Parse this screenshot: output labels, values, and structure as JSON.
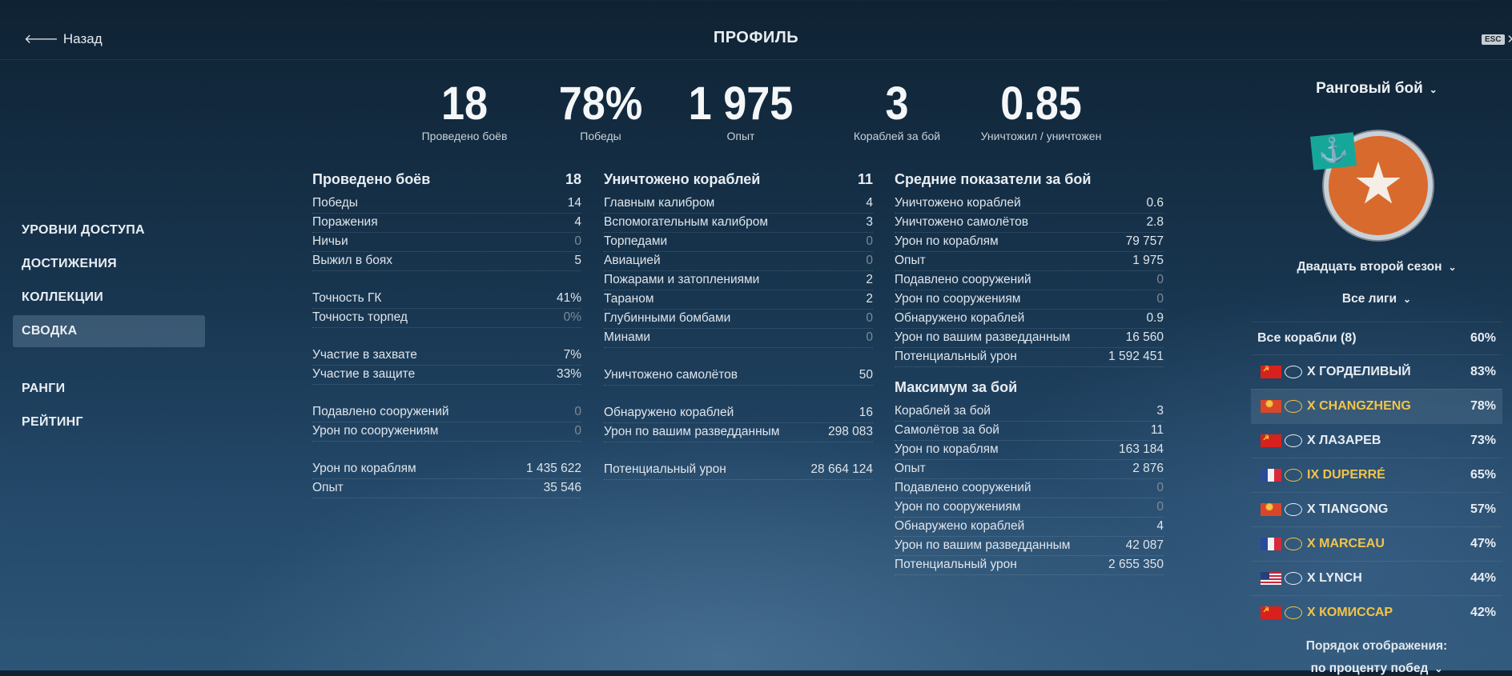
{
  "header": {
    "back_label": "Назад",
    "title": "ПРОФИЛЬ",
    "esc_label": "ESC",
    "close_glyph": "✕"
  },
  "nav": [
    {
      "label": "УРОВНИ ДОСТУПА",
      "active": false
    },
    {
      "label": "ДОСТИЖЕНИЯ",
      "active": false
    },
    {
      "label": "КОЛЛЕКЦИИ",
      "active": false
    },
    {
      "label": "СВОДКА",
      "active": true
    },
    {
      "label": "РАНГИ",
      "active": false
    },
    {
      "label": "РЕЙТИНГ",
      "active": false
    }
  ],
  "headline": [
    {
      "value": "18",
      "label": "Проведено боёв"
    },
    {
      "value": "78%",
      "label": "Победы"
    },
    {
      "value": "1 975",
      "label": "Опыт"
    },
    {
      "value": "3",
      "label": "Кораблей за бой"
    },
    {
      "value": "0.85",
      "label": "Уничтожил / уничтожен"
    }
  ],
  "col1": {
    "title": "Проведено боёв",
    "value": "18",
    "rows": [
      {
        "label": "Победы",
        "value": "14"
      },
      {
        "label": "Поражения",
        "value": "4"
      },
      {
        "label": "Ничьи",
        "value": "0",
        "zero": true
      },
      {
        "label": "Выжил в боях",
        "value": "5"
      },
      null,
      {
        "label": "Точность ГК",
        "value": "41%"
      },
      {
        "label": "Точность торпед",
        "value": "0%",
        "zero": true
      },
      null,
      {
        "label": "Участие в захвате",
        "value": "7%"
      },
      {
        "label": "Участие в защите",
        "value": "33%"
      },
      null,
      {
        "label": "Подавлено сооружений",
        "value": "0",
        "zero": true
      },
      {
        "label": "Урон по сооружениям",
        "value": "0",
        "zero": true
      },
      null,
      {
        "label": "Урон по кораблям",
        "value": "1 435 622"
      },
      {
        "label": "Опыт",
        "value": "35 546"
      }
    ]
  },
  "col2": {
    "title": "Уничтожено кораблей",
    "value": "11",
    "rows": [
      {
        "label": "Главным калибром",
        "value": "4"
      },
      {
        "label": "Вспомогательным калибром",
        "value": "3"
      },
      {
        "label": "Торпедами",
        "value": "0",
        "zero": true
      },
      {
        "label": "Авиацией",
        "value": "0",
        "zero": true
      },
      {
        "label": "Пожарами и затоплениями",
        "value": "2"
      },
      {
        "label": "Тараном",
        "value": "2"
      },
      {
        "label": "Глубинными бомбами",
        "value": "0",
        "zero": true
      },
      {
        "label": "Минами",
        "value": "0",
        "zero": true
      },
      null,
      {
        "label": "Уничтожено самолётов",
        "value": "50"
      },
      null,
      {
        "label": "Обнаружено кораблей",
        "value": "16"
      },
      {
        "label": "Урон по вашим разведданным",
        "value": "298 083"
      },
      null,
      {
        "label": "Потенциальный урон",
        "value": "28 664 124"
      }
    ]
  },
  "col3": {
    "title": "Средние показатели за бой",
    "rows": [
      {
        "label": "Уничтожено кораблей",
        "value": "0.6"
      },
      {
        "label": "Уничтожено самолётов",
        "value": "2.8"
      },
      {
        "label": "Урон по кораблям",
        "value": "79 757"
      },
      {
        "label": "Опыт",
        "value": "1 975"
      },
      {
        "label": "Подавлено сооружений",
        "value": "0",
        "zero": true
      },
      {
        "label": "Урон по сооружениям",
        "value": "0",
        "zero": true
      },
      {
        "label": "Обнаружено кораблей",
        "value": "0.9"
      },
      {
        "label": "Урон по вашим разведданным",
        "value": "16 560"
      },
      {
        "label": "Потенциальный урон",
        "value": "1 592 451"
      }
    ],
    "max_title": "Максимум за бой",
    "max_rows": [
      {
        "label": "Кораблей за бой",
        "value": "3"
      },
      {
        "label": "Самолётов за бой",
        "value": "11"
      },
      {
        "label": "Урон по кораблям",
        "value": "163 184"
      },
      {
        "label": "Опыт",
        "value": "2 876"
      },
      {
        "label": "Подавлено сооружений",
        "value": "0",
        "zero": true
      },
      {
        "label": "Урон по сооружениям",
        "value": "0",
        "zero": true
      },
      {
        "label": "Обнаружено кораблей",
        "value": "4"
      },
      {
        "label": "Урон по вашим разведданным",
        "value": "42 087"
      },
      {
        "label": "Потенциальный урон",
        "value": "2 655 350"
      }
    ]
  },
  "right": {
    "mode": "Ранговый бой",
    "season": "Двадцать второй сезон",
    "league": "Все лиги",
    "all_ships_label": "Все корабли (8)",
    "all_ships_pct": "60%",
    "ships": [
      {
        "name": "X ГОРДЕЛИВЫЙ",
        "pct": "83%",
        "flag": "ussr",
        "gold": false
      },
      {
        "name": "X CHANGZHENG",
        "pct": "78%",
        "flag": "panasia",
        "gold": true
      },
      {
        "name": "X ЛАЗАРЕВ",
        "pct": "73%",
        "flag": "ussr",
        "gold": false
      },
      {
        "name": "IX DUPERRÉ",
        "pct": "65%",
        "flag": "france",
        "gold": true
      },
      {
        "name": "X TIANGONG",
        "pct": "57%",
        "flag": "panasia",
        "gold": false
      },
      {
        "name": "X MARCEAU",
        "pct": "47%",
        "flag": "france",
        "gold": true
      },
      {
        "name": "X LYNCH",
        "pct": "44%",
        "flag": "usa",
        "gold": false
      },
      {
        "name": "X КОМИССАР",
        "pct": "42%",
        "flag": "ussr",
        "gold": true
      }
    ],
    "order_label": "Порядок отображения:",
    "order_value": "по проценту побед"
  },
  "colors": {
    "gold": "#f2c44a",
    "zero": "#7d8a97",
    "medal": "#d96a2e",
    "anchor_flag": "#17a79a"
  }
}
